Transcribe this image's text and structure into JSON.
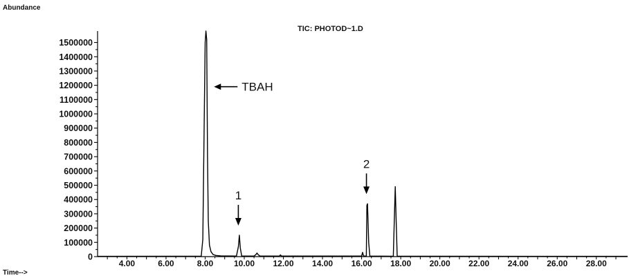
{
  "chart_data": {
    "type": "line",
    "title": "TIC: PHOTOD~1.D",
    "ylabel": "Abundance",
    "xlabel": "Time-->",
    "xlim": [
      2.5,
      29.6
    ],
    "ylim": [
      0,
      1580000
    ],
    "yticks": [
      0,
      100000,
      200000,
      300000,
      400000,
      500000,
      600000,
      700000,
      800000,
      900000,
      1000000,
      1100000,
      1200000,
      1300000,
      1400000,
      1500000
    ],
    "ytick_labels": [
      "0",
      "100000",
      "200000",
      "300000",
      "400000",
      "500000",
      "600000",
      "700000",
      "800000",
      "900000",
      "1000000",
      "1100000",
      "1200000",
      "1300000",
      "1400000",
      "1500000"
    ],
    "xtick_labels": [
      "4.00",
      "6.00",
      "8.00",
      "10.00",
      "12.00",
      "14.00",
      "16.00",
      "18.00",
      "20.00",
      "22.00",
      "24.00",
      "26.00",
      "28.00"
    ],
    "xticks": [
      4,
      6,
      8,
      10,
      12,
      14,
      16,
      18,
      20,
      22,
      24,
      26,
      28
    ],
    "grid": false,
    "line_color": "#000000",
    "series": [
      {
        "x": [
          2.5,
          7.8,
          7.88,
          7.95,
          8.0,
          8.04,
          8.08,
          8.12,
          8.16,
          8.22,
          8.3,
          8.4,
          8.55,
          8.8,
          9.6,
          9.7,
          9.75,
          9.8,
          9.87,
          10.5,
          10.6,
          10.65,
          10.7,
          10.8,
          11.8,
          11.85,
          11.9,
          16.0,
          16.05,
          16.1,
          16.24,
          16.27,
          16.3,
          16.36,
          16.42,
          17.62,
          17.67,
          17.72,
          17.77,
          17.82,
          29.6
        ],
        "y": [
          2000,
          3000,
          120000,
          900000,
          1500000,
          1580000,
          1520000,
          700000,
          250000,
          80000,
          35000,
          15000,
          8000,
          5000,
          4000,
          70000,
          150000,
          60000,
          4000,
          4000,
          15000,
          25000,
          15000,
          4000,
          4000,
          12000,
          4000,
          4000,
          30000,
          4000,
          4000,
          360000,
          370000,
          100000,
          4000,
          3000,
          250000,
          490000,
          240000,
          3000,
          2000
        ]
      }
    ],
    "annotations": [
      {
        "text": "TBAH",
        "x": 8.1,
        "y": 1190000
      },
      {
        "text": "1",
        "x": 9.75,
        "y": 150000
      },
      {
        "text": "2",
        "x": 16.3,
        "y": 370000
      }
    ]
  }
}
